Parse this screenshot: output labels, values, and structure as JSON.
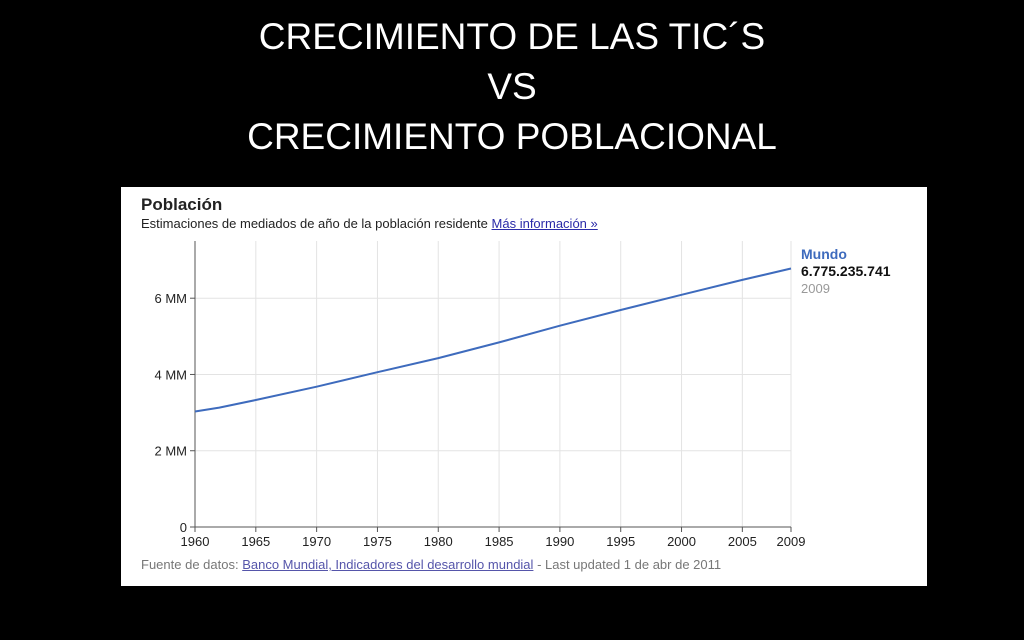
{
  "slide": {
    "title_lines": [
      "CRECIMIENTO DE LAS TIC´S",
      "VS",
      "CRECIMIENTO POBLACIONAL"
    ]
  },
  "panel": {
    "title": "Población",
    "subtitle": "Estimaciones de mediados de año de la población residente",
    "more_link": "Más información »",
    "legend": {
      "name": "Mundo",
      "value": "6.775.235.741",
      "year": "2009"
    },
    "footer_prefix": "Fuente de datos:",
    "footer_link": "Banco Mundial, Indicadores del desarrollo mundial",
    "footer_suffix": "- Last updated 1 de abr de 2011"
  },
  "colors": {
    "line": "#3e6bbd",
    "background": "#000000",
    "grid": "#e3e3e3"
  },
  "chart_data": {
    "type": "line",
    "title": "Población",
    "x": [
      1960,
      1962,
      1965,
      1970,
      1975,
      1980,
      1985,
      1990,
      1995,
      2000,
      2005,
      2009
    ],
    "series": [
      {
        "name": "Mundo",
        "values": [
          3.03,
          3.13,
          3.33,
          3.68,
          4.06,
          4.43,
          4.84,
          5.28,
          5.69,
          6.09,
          6.48,
          6.78
        ]
      }
    ],
    "y_ticks": [
      0,
      2,
      4,
      6
    ],
    "y_tick_labels": [
      "0",
      "2 MM",
      "4 MM",
      "6 MM"
    ],
    "x_ticks": [
      1960,
      1965,
      1970,
      1975,
      1980,
      1985,
      1990,
      1995,
      2000,
      2005,
      2009
    ],
    "x_tick_labels": [
      "1960",
      "1965",
      "1970",
      "1975",
      "1980",
      "1985",
      "1990",
      "1995",
      "2000",
      "2005",
      "2009"
    ],
    "xlim": [
      1960,
      2009
    ],
    "ylim": [
      0,
      7.5
    ],
    "grid": true,
    "legend_position": "right"
  }
}
